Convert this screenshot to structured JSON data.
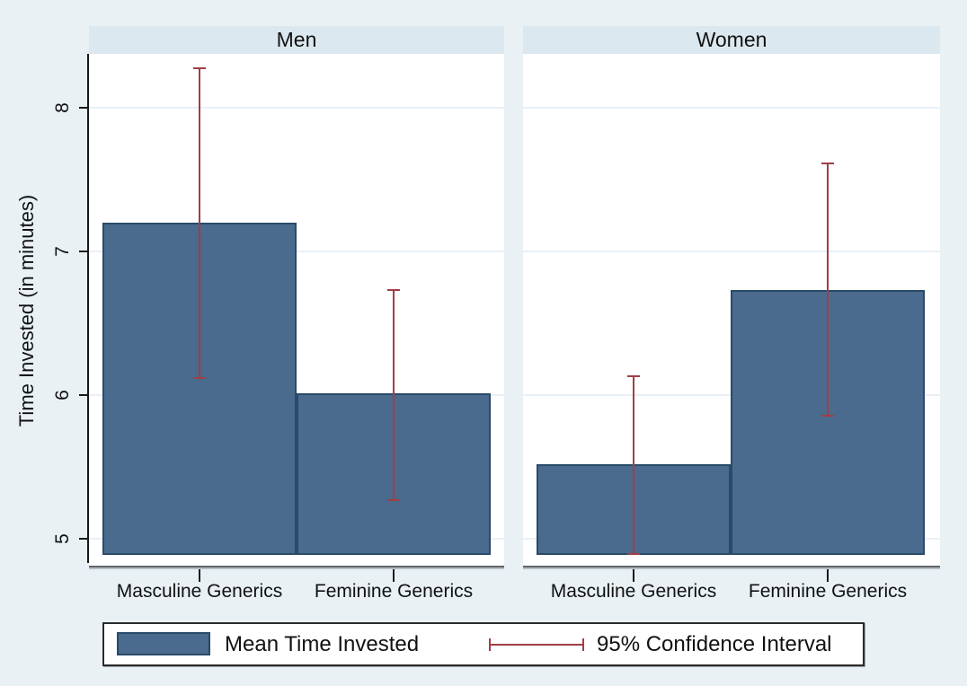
{
  "chart_data": {
    "type": "bar",
    "ylabel": "Time Invested (in minutes)",
    "categories": [
      "Masculine Generics",
      "Feminine Generics"
    ],
    "yticks": [
      5,
      6,
      7,
      8
    ],
    "ylim": [
      4.89,
      8.38
    ],
    "grid": "horizontal",
    "legend_position": "bottom",
    "panels": [
      {
        "title": "Men",
        "series": [
          {
            "category": "Masculine Generics",
            "mean": 7.2,
            "ci_low": 6.11,
            "ci_high": 8.28
          },
          {
            "category": "Feminine Generics",
            "mean": 6.01,
            "ci_low": 5.26,
            "ci_high": 6.74
          }
        ]
      },
      {
        "title": "Women",
        "series": [
          {
            "category": "Masculine Generics",
            "mean": 5.52,
            "ci_low": 4.89,
            "ci_high": 6.14
          },
          {
            "category": "Feminine Generics",
            "mean": 6.73,
            "ci_low": 5.85,
            "ci_high": 7.62
          }
        ]
      }
    ],
    "legend": [
      {
        "glyph": "bar-swatch",
        "label": "Mean Time Invested"
      },
      {
        "glyph": "error-bar",
        "label": "95% Confidence Interval"
      }
    ],
    "colors": {
      "bar_fill": "#4a6b8d",
      "bar_border": "#2a4a68",
      "ci_color": "#a13e45",
      "panel_header_bg": "#dce8ef",
      "page_bg": "#e9f1f5",
      "gridline": "#e8f0f6"
    }
  }
}
